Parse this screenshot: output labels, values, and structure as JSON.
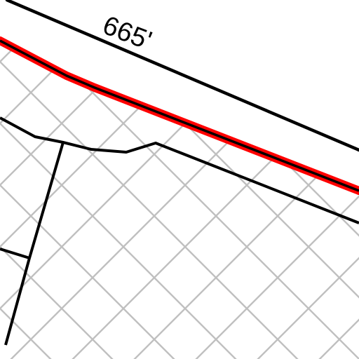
{
  "map": {
    "dimension_label": "665'",
    "colors": {
      "background": "#ffffff",
      "hatch": "#c0c0c0",
      "line": "#000000",
      "highlight": "#ff0000"
    },
    "layers": [
      "road-outline",
      "highlighted-boundary",
      "parcel-lines",
      "crosshatch-area"
    ]
  }
}
